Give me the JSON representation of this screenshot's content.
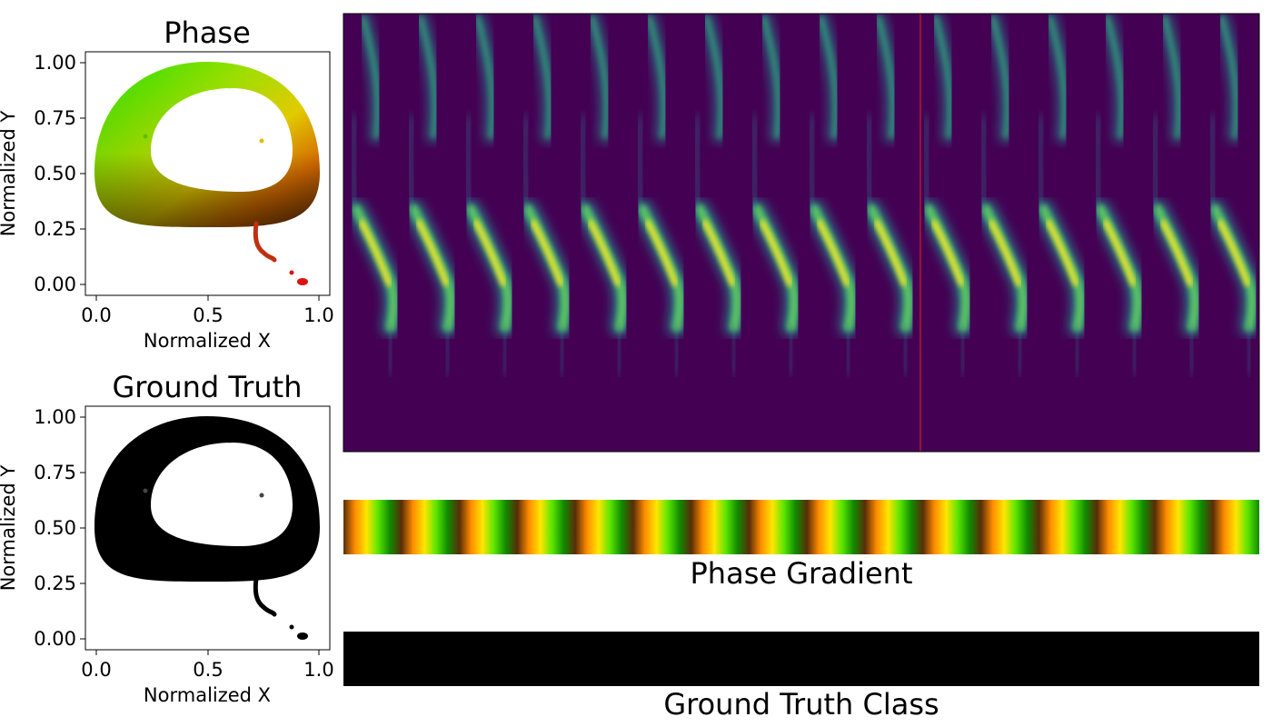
{
  "panels": {
    "phase_title": "Phase",
    "ground_truth_title": "Ground Truth",
    "phase_gradient_label": "Phase Gradient",
    "ground_truth_class_label": "Ground Truth Class"
  },
  "colors": {
    "ground_truth_points": "#000000",
    "ground_truth_bar": "#000000",
    "spectrogram_background": "#440154",
    "spectrogram_peak": "#fde725",
    "divider_line": "#cc2222"
  },
  "chart_data": [
    {
      "type": "scatter",
      "title": "Phase",
      "xlabel": "Normalized X",
      "ylabel": "Normalized Y",
      "xlim": [
        -0.04,
        1.04
      ],
      "ylim": [
        -0.05,
        1.05
      ],
      "xticks": [
        "0.0",
        "0.5",
        "1.0"
      ],
      "yticks": [
        "0.00",
        "0.25",
        "0.50",
        "0.75",
        "1.00"
      ],
      "color_encoding": "phase hue: green to yellow to orange to brown",
      "ring": {
        "center": [
          0.5,
          0.63
        ],
        "outer_radius": [
          0.5,
          0.37
        ],
        "inner_radius": [
          0.33,
          0.22
        ]
      },
      "tail": [
        [
          0.73,
          0.27
        ],
        [
          0.74,
          0.2
        ],
        [
          0.76,
          0.15
        ],
        [
          0.8,
          0.12
        ],
        [
          0.88,
          0.06
        ],
        [
          0.92,
          0.03
        ],
        [
          0.94,
          0.01
        ]
      ],
      "tail_color": "#dd1111"
    },
    {
      "type": "scatter",
      "title": "Ground Truth",
      "xlabel": "Normalized X",
      "ylabel": "Normalized Y",
      "xlim": [
        -0.04,
        1.04
      ],
      "ylim": [
        -0.05,
        1.05
      ],
      "xticks": [
        "0.0",
        "0.5",
        "1.0"
      ],
      "yticks": [
        "0.00",
        "0.25",
        "0.50",
        "0.75",
        "1.00"
      ],
      "point_color": "#000000",
      "ring": {
        "center": [
          0.5,
          0.63
        ],
        "outer_radius": [
          0.5,
          0.37
        ],
        "inner_radius": [
          0.33,
          0.22
        ]
      },
      "tail": [
        [
          0.73,
          0.27
        ],
        [
          0.74,
          0.2
        ],
        [
          0.76,
          0.15
        ],
        [
          0.8,
          0.12
        ],
        [
          0.88,
          0.06
        ],
        [
          0.92,
          0.03
        ],
        [
          0.94,
          0.01
        ]
      ]
    },
    {
      "type": "heatmap",
      "description": "spectrogram",
      "colormap": "viridis",
      "syllable_count": 16,
      "divider_fraction": 0.63
    },
    {
      "type": "heatmap",
      "title": "Phase Gradient",
      "colormap": "phase cycle",
      "color_stops": [
        "#5a2c08",
        "#ff8c00",
        "#ffe600",
        "#5ae600",
        "#108a00"
      ],
      "cycles": 16
    },
    {
      "type": "heatmap",
      "title": "Ground Truth Class",
      "color": "#000000"
    }
  ]
}
